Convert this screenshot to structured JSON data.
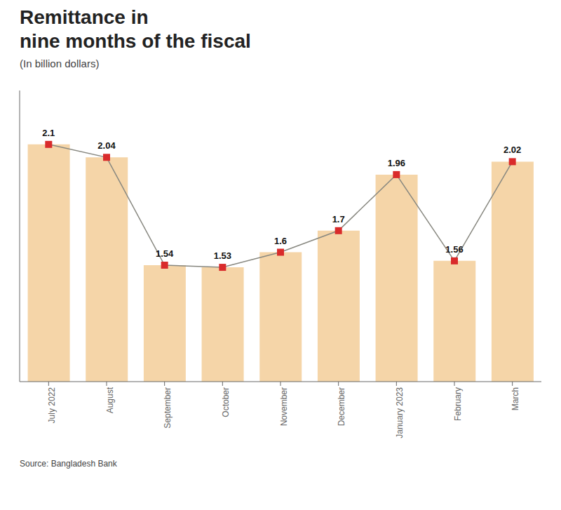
{
  "chart_data": {
    "type": "bar",
    "title": "Remittance in\nnine months of the fiscal",
    "subtitle": "(In billion dollars)",
    "annotations": [
      "Source: Bangladesh Bank"
    ],
    "categories": [
      "July 2022",
      "August",
      "September",
      "October",
      "November",
      "December",
      "January 2023",
      "February",
      "March"
    ],
    "series": [
      {
        "type": "bar",
        "color": "#F5D5A8",
        "values": [
          2.1,
          2.04,
          1.54,
          1.53,
          1.6,
          1.7,
          1.96,
          1.56,
          2.02
        ]
      },
      {
        "type": "line",
        "color": "#888880",
        "marker": "square",
        "colors": [
          "#D92B2B",
          "#D92B2B",
          "#D92B2B",
          "#D92B2B",
          "#D92B2B",
          "#D92B2B",
          "#D92B2B",
          "#D92B2B",
          "#D92B2B"
        ],
        "data_labels": true,
        "values": [
          2.1,
          2.04,
          1.54,
          1.53,
          1.6,
          1.7,
          1.96,
          1.56,
          2.02
        ]
      }
    ],
    "ylim": [
      1.0,
      2.35
    ],
    "tick_labels": "x",
    "grid": false
  }
}
